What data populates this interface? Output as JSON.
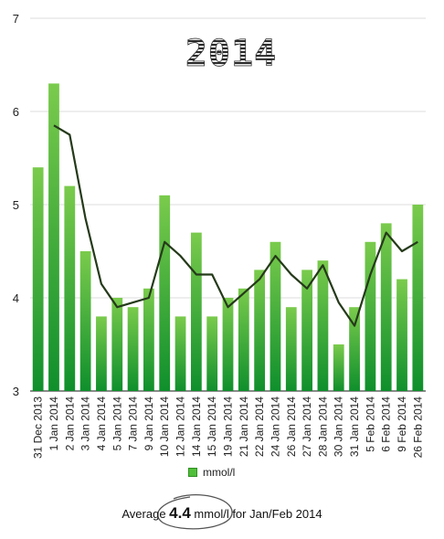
{
  "chart_data": {
    "type": "bar",
    "title": "2014",
    "categories": [
      "31 Dec 2013",
      "1 Jan 2014",
      "2 Jan 2014",
      "3 Jan 2014",
      "4 Jan 2014",
      "5 Jan 2014",
      "7 Jan 2014",
      "9 Jan 2014",
      "10 Jan 2014",
      "12 Jan 2014",
      "14 Jan 2014",
      "15 Jan 2014",
      "19 Jan 2014",
      "21 Jan 2014",
      "22 Jan 2014",
      "24 Jan 2014",
      "26 Jan 2014",
      "27 Jan 2014",
      "28 Jan 2014",
      "30 Jan 2014",
      "31 Jan 2014",
      "5 Feb 2014",
      "6 Feb 2014",
      "9 Feb 2014",
      "26 Feb 2014"
    ],
    "series": [
      {
        "name": "mmol/l",
        "type": "bar",
        "values": [
          5.4,
          6.3,
          5.2,
          4.5,
          3.8,
          4.0,
          3.9,
          4.1,
          5.1,
          3.8,
          4.7,
          3.8,
          4.0,
          4.1,
          4.3,
          4.6,
          3.9,
          4.3,
          4.4,
          3.5,
          3.9,
          4.6,
          4.8,
          4.2,
          5.0
        ]
      },
      {
        "type": "line",
        "values": [
          null,
          5.85,
          5.75,
          4.85,
          4.15,
          3.9,
          3.95,
          4.0,
          4.6,
          4.45,
          4.25,
          4.25,
          3.9,
          4.05,
          4.2,
          4.45,
          4.25,
          4.1,
          4.35,
          3.95,
          3.7,
          4.25,
          4.7,
          4.5,
          4.6
        ]
      }
    ],
    "ylim": [
      3,
      7
    ],
    "yticks": [
      3,
      4,
      5,
      6,
      7
    ],
    "grid": true,
    "legend": "bottom-center",
    "colors": {
      "bar_top": "#7acb4c",
      "bar_bottom": "#0f8f2c",
      "line": "#253a1a",
      "grid": "#dddddd"
    }
  },
  "legend_label": "mmol/l",
  "average": {
    "prefix": "Average ",
    "value": "4.4",
    "suffix": " mmol/l for Jan/Feb 2014"
  }
}
